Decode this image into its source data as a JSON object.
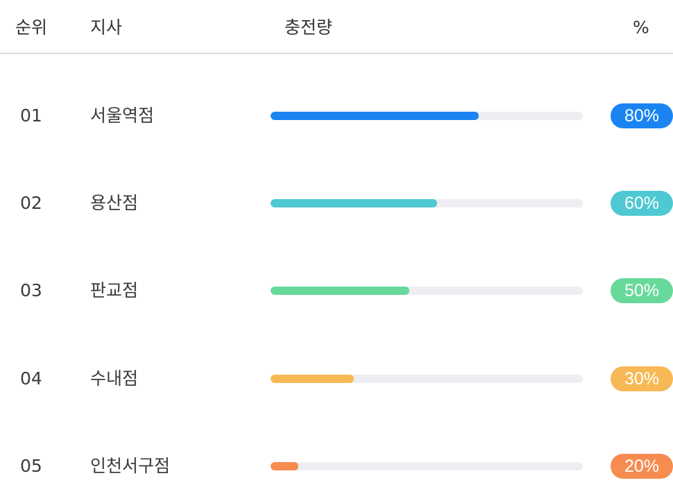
{
  "header": {
    "rank": "순위",
    "branch": "지사",
    "amount": "충전량",
    "percent": "%"
  },
  "rows": [
    {
      "rank": "01",
      "branch": "서울역점",
      "bar_fraction": 0.667,
      "percent": "80%",
      "color": "#1a84f2"
    },
    {
      "rank": "02",
      "branch": "용산점",
      "bar_fraction": 0.533,
      "percent": "60%",
      "color": "#4ec8d2"
    },
    {
      "rank": "03",
      "branch": "판교점",
      "bar_fraction": 0.444,
      "percent": "50%",
      "color": "#67d99b"
    },
    {
      "rank": "04",
      "branch": "수내점",
      "bar_fraction": 0.267,
      "percent": "30%",
      "color": "#f7b955"
    },
    {
      "rank": "05",
      "branch": "인천서구점",
      "bar_fraction": 0.089,
      "percent": "20%",
      "color": "#f78c50"
    }
  ]
}
